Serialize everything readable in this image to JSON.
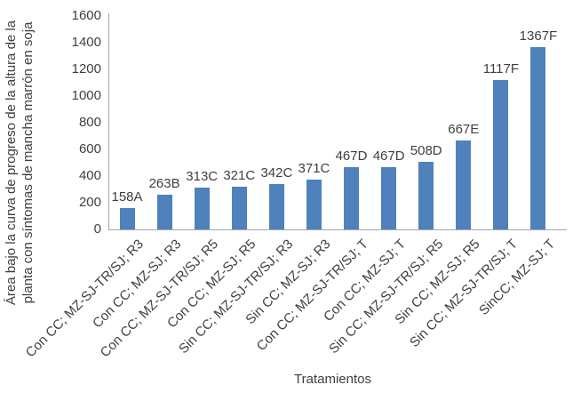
{
  "chart_data": {
    "type": "bar",
    "title": "",
    "xlabel": "Tratamientos",
    "ylabel_line1": "Área bajo la curva de progreso de la altura de la",
    "ylabel_line2": "planta con síntomas de mancha marrón en soja",
    "categories": [
      "Con CC; MZ-SJ-TR/SJ; R3",
      "Con CC; MZ-SJ; R3",
      "Con CC; MZ-SJ-TR/SJ; R5",
      "Con CC; MZ-SJ; R5",
      "Sin CC; MZ-SJ-TR/SJ; R3",
      "Sin CC; MZ-SJ; R3",
      "Con CC; MZ-SJ-TR/SJ; T",
      "Con CC; MZ-SJ; T",
      "Sin CC; MZ-SJ-TR/SJ; R5",
      "Sin CC; MZ-SJ; R5",
      "Sin CC; MZ-SJ-TR/SJ; T",
      "SinCC; MZ-SJ; T"
    ],
    "values": [
      158,
      263,
      313,
      321,
      342,
      371,
      467,
      467,
      508,
      667,
      1117,
      1367
    ],
    "bar_labels": [
      "158A",
      "263B",
      "313C",
      "321C",
      "342C",
      "371C",
      "467D",
      "467D",
      "508D",
      "667E",
      "1117F",
      "1367F"
    ],
    "ylim": [
      0,
      1600
    ],
    "ytick_step": 200,
    "yticks": [
      0,
      200,
      400,
      600,
      800,
      1000,
      1200,
      1400,
      1600
    ],
    "grid": false,
    "legend": "none",
    "colors": {
      "bar": "#4f81bd",
      "axis": "#a6a6a6",
      "text": "#3f3f3f"
    }
  }
}
